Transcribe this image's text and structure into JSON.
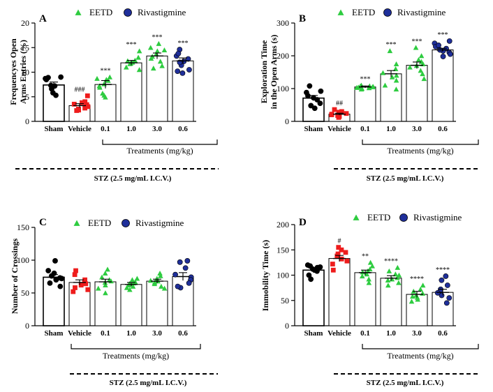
{
  "treatment_legend": [
    {
      "name": "EETD",
      "marker": "triangle",
      "color": "#2ecc40"
    },
    {
      "name": "Rivastigmine",
      "marker": "circle",
      "color": "#1f2f9a"
    }
  ],
  "colors": {
    "sham": "#000000",
    "vehicle": "#ee1c1c",
    "eetd": "#2ecc40",
    "rivastigmine": "#1f2f9a"
  },
  "chart_data": [
    {
      "panel": "A",
      "type": "bar",
      "ylabel": "Frequencyes Open\nArms Entries (%)",
      "ylim": [
        0,
        20
      ],
      "yticks": [
        0,
        5,
        10,
        15,
        20
      ],
      "categories": [
        "Sham",
        "Vehicle",
        "0.1",
        "1.0",
        "3.0",
        "0.6"
      ],
      "group_label": "Treatments (mg/kg)",
      "stz_label": "STZ (2.5 mg/mL I.C.V.)",
      "means": [
        7.4,
        3.2,
        7.5,
        11.9,
        13.3,
        12.3
      ],
      "sem": [
        0.6,
        0.4,
        0.8,
        0.5,
        0.6,
        0.6
      ],
      "annotations": [
        "",
        "###",
        "***",
        "***",
        "***",
        "***"
      ],
      "points": [
        [
          8.7,
          9.0,
          8.5,
          7.2,
          6.6,
          5.8,
          5.3,
          8.9,
          7.3
        ],
        [
          5.2,
          4.0,
          3.5,
          3.0,
          2.7,
          2.3,
          3.4,
          2.5,
          3.8,
          2.2
        ],
        [
          9.0,
          8.5,
          8.3,
          7.6,
          7.2,
          5.7,
          4.9,
          8.7,
          6.9,
          5.3
        ],
        [
          14.3,
          12.4,
          12.3,
          11.7,
          11.0,
          12.0,
          10.5,
          13.0,
          11.8
        ],
        [
          15.8,
          14.5,
          13.7,
          13.2,
          12.2,
          11.3,
          10.8,
          14.3,
          12.8,
          15.0
        ],
        [
          14.6,
          13.3,
          12.7,
          12.2,
          11.4,
          10.5,
          9.8,
          13.8,
          12.0,
          10.2
        ]
      ]
    },
    {
      "panel": "B",
      "type": "bar",
      "ylabel": "Exploration Time\nin the Open Arms (s)",
      "ylim": [
        0,
        300
      ],
      "yticks": [
        0,
        100,
        200,
        300
      ],
      "categories": [
        "Sham",
        "Vehicle",
        "0.1",
        "1.0",
        "3.0",
        "0.6"
      ],
      "group_label": "Treatments (mg/kg)",
      "stz_label": "STZ (2.5 mg/mL I.C.V.)",
      "means": [
        71,
        22,
        105,
        145,
        171,
        218
      ],
      "sem": [
        8,
        3,
        3,
        10,
        10,
        5
      ],
      "annotations": [
        "",
        "##",
        "***",
        "***",
        "***",
        "***"
      ],
      "points": [
        [
          108,
          92,
          88,
          78,
          72,
          55,
          48,
          40,
          66
        ],
        [
          36,
          30,
          22,
          20,
          15,
          12,
          28,
          24,
          18
        ],
        [
          110,
          108,
          106,
          104,
          103,
          102,
          100,
          107,
          105,
          98
        ],
        [
          215,
          175,
          160,
          148,
          135,
          125,
          110,
          98,
          140
        ],
        [
          225,
          200,
          182,
          175,
          165,
          155,
          145,
          130,
          188,
          170
        ],
        [
          245,
          238,
          228,
          222,
          215,
          210,
          205,
          198,
          232,
          218
        ]
      ]
    },
    {
      "panel": "C",
      "type": "bar",
      "ylabel": "Number of Crossings",
      "ylim": [
        0,
        150
      ],
      "yticks": [
        0,
        50,
        100,
        150
      ],
      "categories": [
        "Sham",
        "Vehicle",
        "0.1",
        "1.0",
        "3.0",
        "0.6"
      ],
      "group_label": "Treatments (mg/kg)",
      "stz_label": "STZ (2.5 mg/mL I.C.V.)",
      "means": [
        74,
        66,
        67,
        63,
        68,
        75
      ],
      "sem": [
        4,
        4,
        4,
        3,
        3,
        6
      ],
      "annotations": [
        "",
        "",
        "",
        "",
        "",
        ""
      ],
      "points": [
        [
          99,
          84,
          80,
          76,
          73,
          70,
          65,
          60,
          72
        ],
        [
          84,
          78,
          70,
          66,
          62,
          58,
          55,
          52,
          64
        ],
        [
          86,
          80,
          74,
          70,
          66,
          62,
          57,
          50,
          68
        ],
        [
          72,
          70,
          67,
          64,
          62,
          60,
          58,
          55,
          65
        ],
        [
          80,
          76,
          72,
          69,
          66,
          64,
          60,
          57,
          68
        ],
        [
          99,
          97,
          88,
          78,
          74,
          70,
          65,
          58,
          60
        ]
      ]
    },
    {
      "panel": "D",
      "type": "bar",
      "ylabel": "Immobility Time (s)",
      "ylim": [
        0,
        200
      ],
      "yticks": [
        0,
        50,
        100,
        150,
        200
      ],
      "categories": [
        "Sham",
        "Vehicle",
        "0.1",
        "1.0",
        "3.0",
        "0.6"
      ],
      "group_label": "Treatments (mg/kg)",
      "stz_label": "STZ (2.5 mg/mL I.C.V.)",
      "means": [
        110,
        133,
        105,
        94,
        62,
        66
      ],
      "sem": [
        5,
        6,
        5,
        5,
        6,
        6
      ],
      "annotations": [
        "",
        "#",
        "**",
        "****",
        "****",
        "****"
      ],
      "points": [
        [
          120,
          118,
          116,
          112,
          110,
          108,
          100,
          92,
          115
        ],
        [
          155,
          150,
          142,
          138,
          132,
          128,
          122,
          110,
          145
        ],
        [
          125,
          118,
          112,
          106,
          102,
          98,
          92,
          85,
          108
        ],
        [
          115,
          108,
          102,
          95,
          90,
          85,
          80,
          100,
          92
        ],
        [
          80,
          72,
          68,
          64,
          60,
          56,
          52,
          48,
          58
        ],
        [
          98,
          90,
          80,
          72,
          68,
          60,
          55,
          45,
          65
        ]
      ]
    }
  ]
}
